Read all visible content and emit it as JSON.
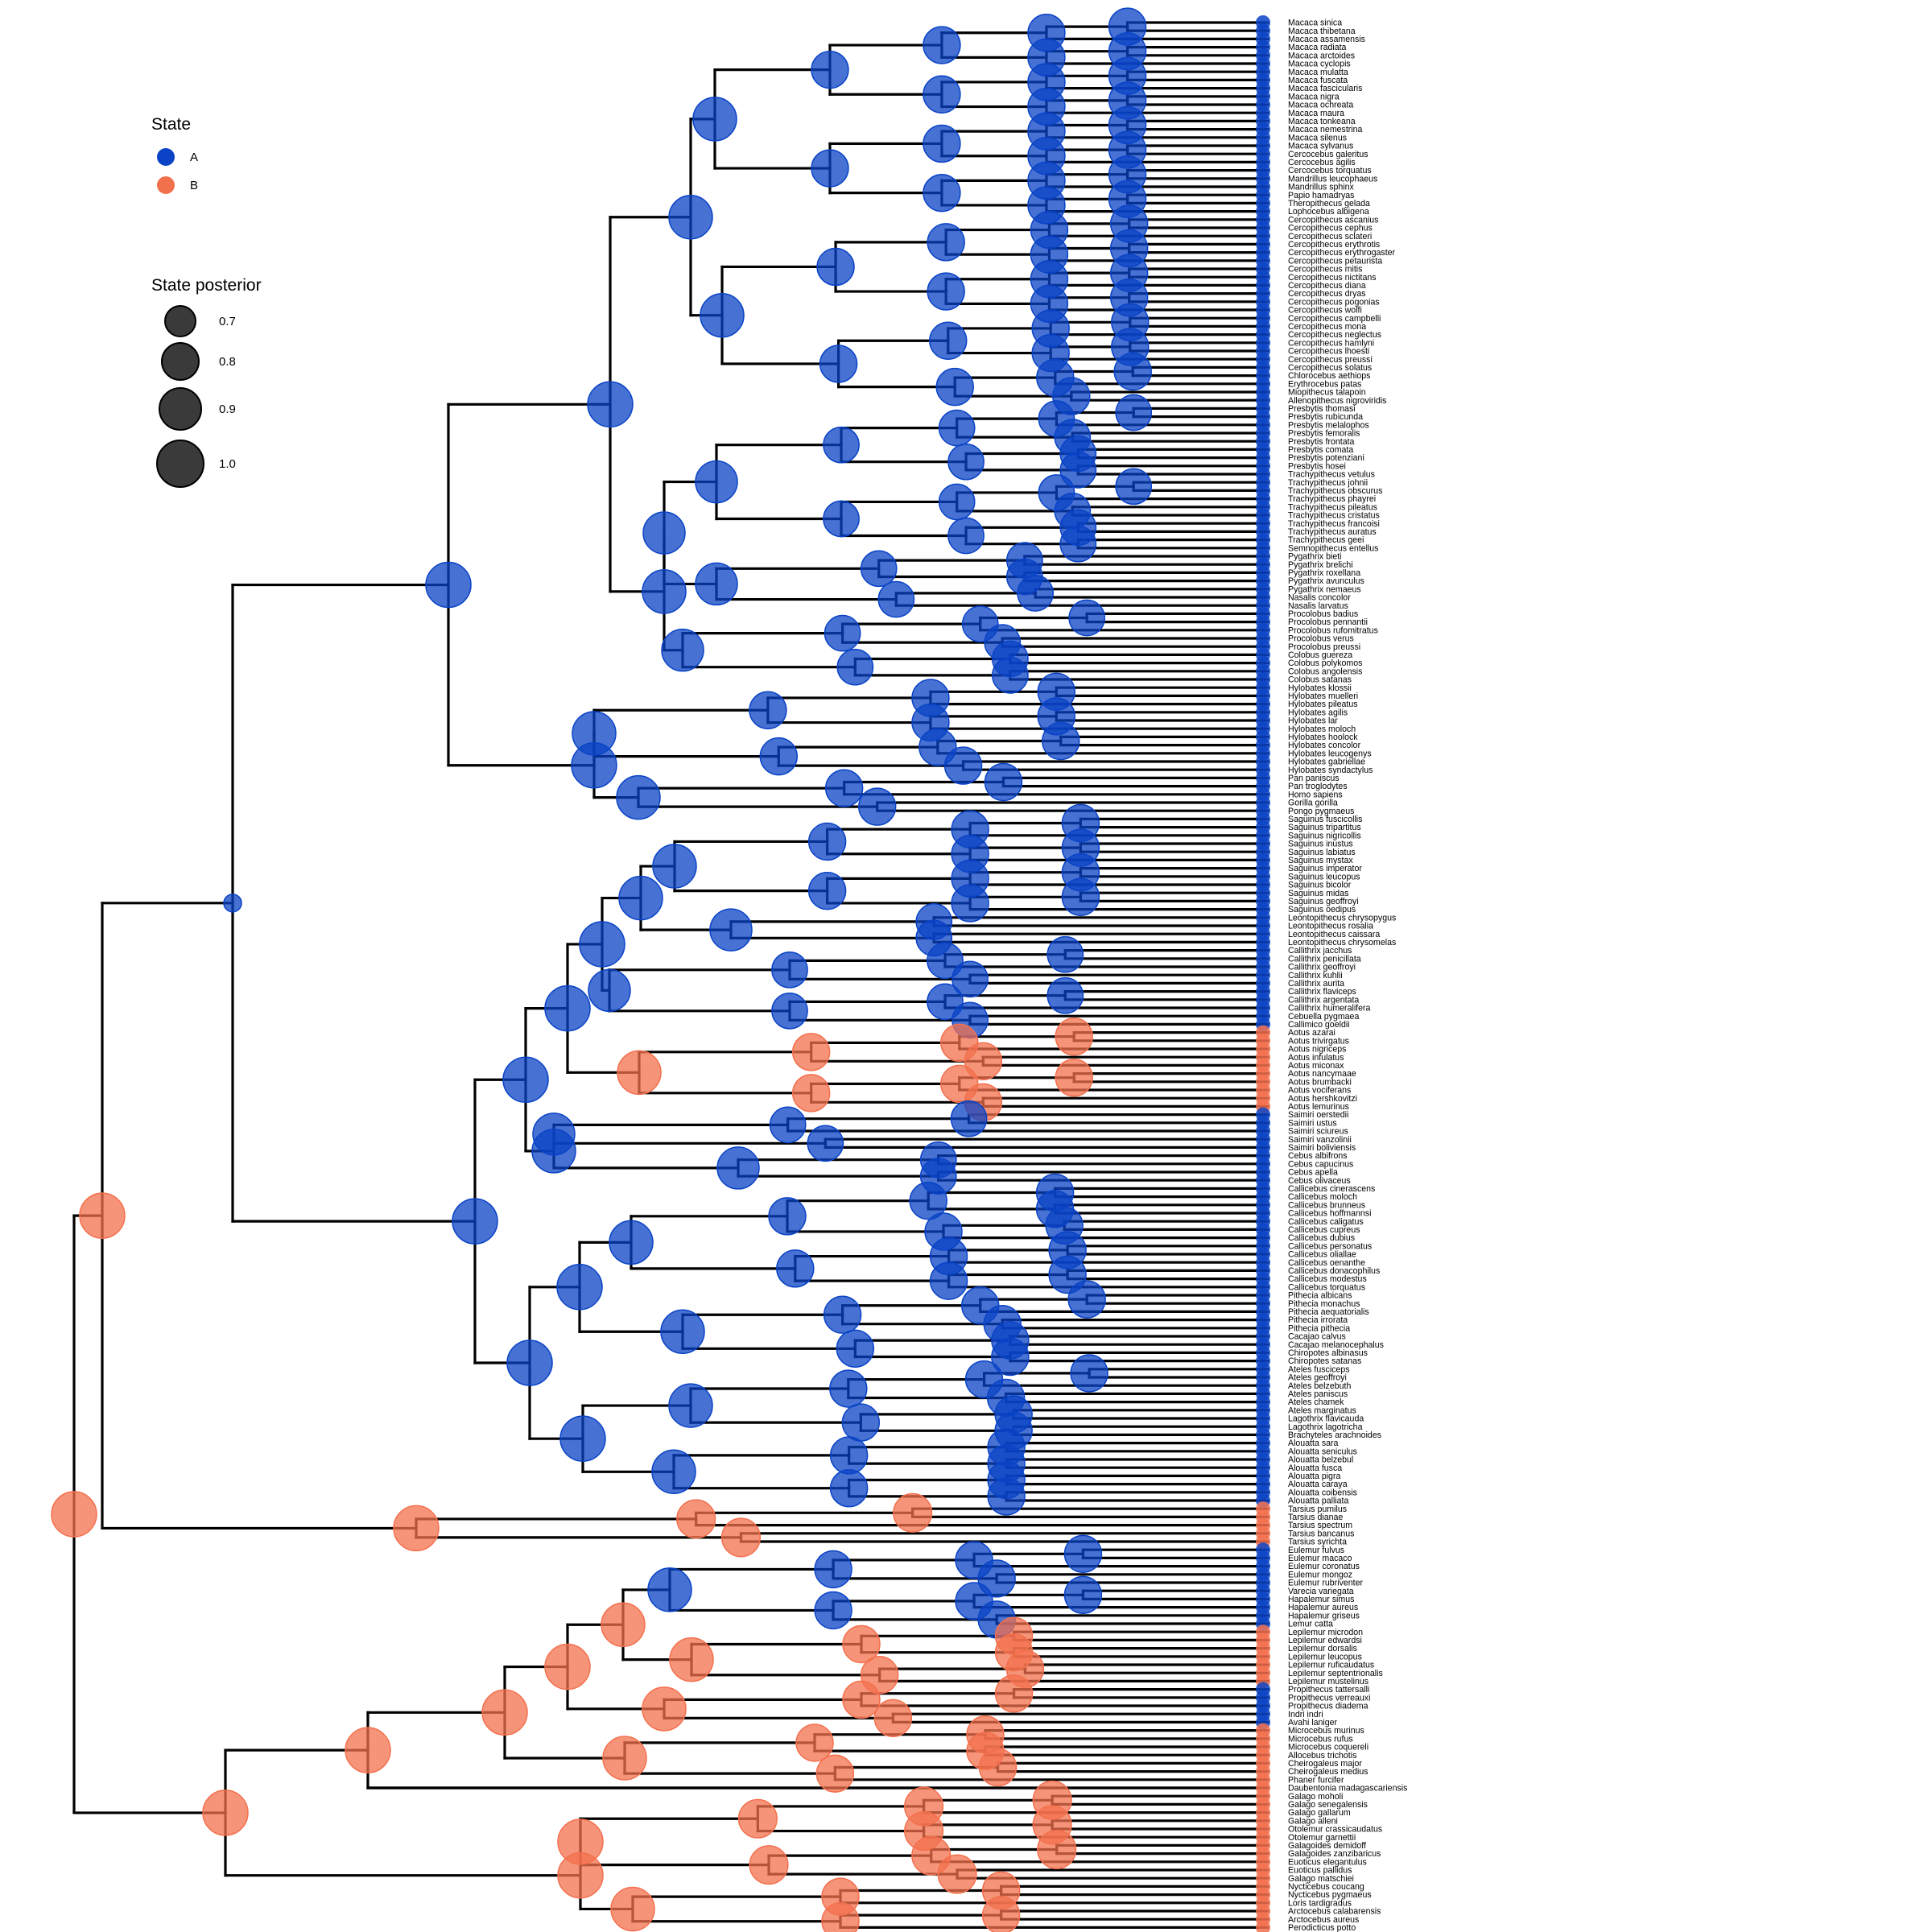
{
  "legend": {
    "state_title": "State",
    "states": [
      {
        "label": "A",
        "color": "#0a43c6"
      },
      {
        "label": "B",
        "color": "#f3704d"
      }
    ],
    "posterior_title": "State posterior",
    "posterior_levels": [
      "0.7",
      "0.8",
      "0.9",
      "1.0"
    ]
  },
  "tips": [
    "Macaca sinica",
    "Macaca thibetana",
    "Macaca assamensis",
    "Macaca radiata",
    "Macaca arctoides",
    "Macaca cyclopis",
    "Macaca mulatta",
    "Macaca fuscata",
    "Macaca fascicularis",
    "Macaca nigra",
    "Macaca ochreata",
    "Macaca maura",
    "Macaca tonkeana",
    "Macaca nemestrina",
    "Macaca silenus",
    "Macaca sylvanus",
    "Cercocebus galeritus",
    "Cercocebus agilis",
    "Cercocebus torquatus",
    "Mandrillus leucophaeus",
    "Mandrillus sphinx",
    "Papio hamadryas",
    "Theropithecus gelada",
    "Lophocebus albigena",
    "Cercopithecus ascanius",
    "Cercopithecus cephus",
    "Cercopithecus sclateri",
    "Cercopithecus erythrotis",
    "Cercopithecus erythrogaster",
    "Cercopithecus petaurista",
    "Cercopithecus mitis",
    "Cercopithecus nictitans",
    "Cercopithecus diana",
    "Cercopithecus dryas",
    "Cercopithecus pogonias",
    "Cercopithecus wolfi",
    "Cercopithecus campbelli",
    "Cercopithecus mona",
    "Cercopithecus neglectus",
    "Cercopithecus hamlyni",
    "Cercopithecus lhoesti",
    "Cercopithecus preussi",
    "Cercopithecus solatus",
    "Chlorocebus aethiops",
    "Erythrocebus patas",
    "Miopithecus talapoin",
    "Allenopithecus nigroviridis",
    "Presbytis thomasi",
    "Presbytis rubicunda",
    "Presbytis melalophos",
    "Presbytis femoralis",
    "Presbytis frontata",
    "Presbytis comata",
    "Presbytis potenziani",
    "Presbytis hosei",
    "Trachypithecus vetulus",
    "Trachypithecus johnii",
    "Trachypithecus obscurus",
    "Trachypithecus phayrei",
    "Trachypithecus pileatus",
    "Trachypithecus cristatus",
    "Trachypithecus francoisi",
    "Trachypithecus auratus",
    "Trachypithecus geei",
    "Semnopithecus entellus",
    "Pygathrix bieti",
    "Pygathrix brelichi",
    "Pygathrix roxellana",
    "Pygathrix avunculus",
    "Pygathrix nemaeus",
    "Nasalis concolor",
    "Nasalis larvatus",
    "Procolobus badius",
    "Procolobus pennantii",
    "Procolobus rufomitratus",
    "Procolobus verus",
    "Procolobus preussi",
    "Colobus guereza",
    "Colobus polykomos",
    "Colobus angolensis",
    "Colobus satanas",
    "Hylobates klossii",
    "Hylobates muelleri",
    "Hylobates pileatus",
    "Hylobates agilis",
    "Hylobates lar",
    "Hylobates moloch",
    "Hylobates hoolock",
    "Hylobates concolor",
    "Hylobates leucogenys",
    "Hylobates gabriellae",
    "Hylobates syndactylus",
    "Pan paniscus",
    "Pan troglodytes",
    "Homo sapiens",
    "Gorilla gorilla",
    "Pongo pygmaeus",
    "Saguinus fuscicollis",
    "Saguinus tripartitus",
    "Saguinus nigricollis",
    "Saguinus inustus",
    "Saguinus labiatus",
    "Saguinus mystax",
    "Saguinus imperator",
    "Saguinus leucopus",
    "Saguinus bicolor",
    "Saguinus midas",
    "Saguinus geoffroyi",
    "Saguinus oedipus",
    "Leontopithecus chrysopygus",
    "Leontopithecus rosalia",
    "Leontopithecus caissara",
    "Leontopithecus chrysomelas",
    "Callithrix jacchus",
    "Callithrix penicillata",
    "Callithrix geoffroyi",
    "Callithrix kuhlii",
    "Callithrix aurita",
    "Callithrix flaviceps",
    "Callithrix argentata",
    "Callithrix humeralifera",
    "Cebuella pygmaea",
    "Callimico goeldii",
    "Aotus azarai",
    "Aotus trivirgatus",
    "Aotus nigriceps",
    "Aotus infulatus",
    "Aotus miconax",
    "Aotus nancymaae",
    "Aotus brumbacki",
    "Aotus vociferans",
    "Aotus hershkovitzi",
    "Aotus lemurinus",
    "Saimiri oerstedii",
    "Saimiri ustus",
    "Saimiri sciureus",
    "Saimiri vanzolinii",
    "Saimiri boliviensis",
    "Cebus albifrons",
    "Cebus capucinus",
    "Cebus apella",
    "Cebus olivaceus",
    "Callicebus cinerascens",
    "Callicebus moloch",
    "Callicebus brunneus",
    "Callicebus hoffmannsi",
    "Callicebus caligatus",
    "Callicebus cupreus",
    "Callicebus dubius",
    "Callicebus personatus",
    "Callicebus oliallae",
    "Callicebus oenanthe",
    "Callicebus donacophilus",
    "Callicebus modestus",
    "Callicebus torquatus",
    "Pithecia albicans",
    "Pithecia monachus",
    "Pithecia aequatorialis",
    "Pithecia irrorata",
    "Pithecia pithecia",
    "Cacajao calvus",
    "Cacajao melanocephalus",
    "Chiropotes albinasus",
    "Chiropotes satanas",
    "Ateles fusciceps",
    "Ateles geoffroyi",
    "Ateles belzebuth",
    "Ateles paniscus",
    "Ateles chamek",
    "Ateles marginatus",
    "Lagothrix flavicauda",
    "Lagothrix lagotricha",
    "Brachyteles arachnoides",
    "Alouatta sara",
    "Alouatta seniculus",
    "Alouatta belzebul",
    "Alouatta fusca",
    "Alouatta pigra",
    "Alouatta caraya",
    "Alouatta coibensis",
    "Alouatta palliata",
    "Tarsius pumilus",
    "Tarsius dianae",
    "Tarsius spectrum",
    "Tarsius bancanus",
    "Tarsius syrichta",
    "Eulemur fulvus",
    "Eulemur macaco",
    "Eulemur coronatus",
    "Eulemur mongoz",
    "Eulemur rubriventer",
    "Varecia variegata",
    "Hapalemur simus",
    "Hapalemur aureus",
    "Hapalemur griseus",
    "Lemur catta",
    "Lepilemur microdon",
    "Lepilemur edwardsi",
    "Lepilemur dorsalis",
    "Lepilemur leucopus",
    "Lepilemur ruficaudatus",
    "Lepilemur septentrionalis",
    "Lepilemur mustelinus",
    "Propithecus tattersalli",
    "Propithecus verreauxi",
    "Propithecus diadema",
    "Indri indri",
    "Avahi laniger",
    "Microcebus murinus",
    "Microcebus rufus",
    "Microcebus coquereli",
    "Allocebus trichotis",
    "Cheirogaleus major",
    "Cheirogaleus medius",
    "Phaner furcifer",
    "Daubentonia madagascariensis",
    "Galago moholi",
    "Galago senegalensis",
    "Galago gallarum",
    "Galago alleni",
    "Otolemur crassicaudatus",
    "Otolemur garnettii",
    "Galagoides demidoff",
    "Galagoides zanzibaricus",
    "Euoticus elegantulus",
    "Euoticus pallidus",
    "Galago matschiei",
    "Nycticebus coucang",
    "Nycticebus pygmaeus",
    "Loris tardigradus",
    "Arctocebus calabarensis",
    "Arctocebus aureus",
    "Perodicticus potto"
  ]
}
